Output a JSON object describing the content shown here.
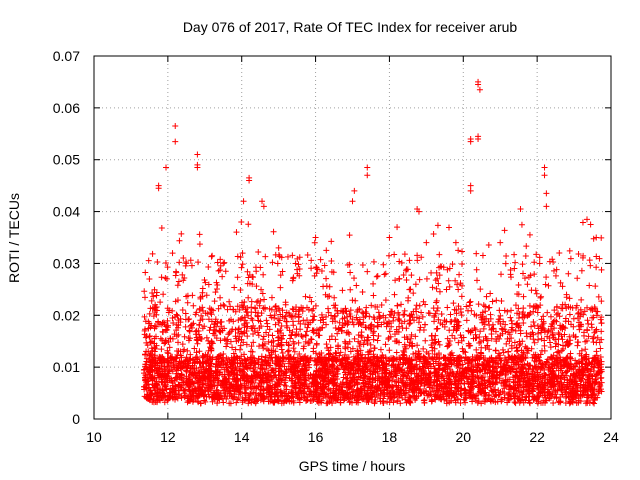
{
  "chart_data": {
    "type": "scatter",
    "title": "Day 076 of 2017, Rate Of TEC Index for receiver arub",
    "xlabel": "GPS time / hours",
    "ylabel": "ROTI / TECUs",
    "xlim": [
      10,
      24
    ],
    "ylim": [
      0,
      0.07
    ],
    "x_ticks": [
      10,
      12,
      14,
      16,
      18,
      20,
      22,
      24
    ],
    "x_tick_labels": [
      "10",
      "12",
      "14",
      "16",
      "18",
      "20",
      "22",
      "24"
    ],
    "y_ticks": [
      0,
      0.01,
      0.02,
      0.03,
      0.04,
      0.05,
      0.06,
      0.07
    ],
    "y_tick_labels": [
      "0",
      "0.01",
      "0.02",
      "0.03",
      "0.04",
      "0.05",
      "0.06",
      "0.07"
    ],
    "grid": true,
    "marker": "+",
    "marker_color": "#ff0000",
    "series": [
      {
        "name": "ROTI",
        "note": "dense cloud of thousands of points between ~11.3 and ~23.8 h; listed are notable outliers/peaks",
        "x_range": [
          11.35,
          23.75
        ],
        "typical_range": [
          0.003,
          0.02
        ],
        "points": [
          [
            12.2,
            0.0565
          ],
          [
            12.2,
            0.0535
          ],
          [
            11.95,
            0.0485
          ],
          [
            11.75,
            0.045
          ],
          [
            11.75,
            0.0445
          ],
          [
            12.8,
            0.051
          ],
          [
            12.8,
            0.049
          ],
          [
            12.8,
            0.0485
          ],
          [
            14.2,
            0.0465
          ],
          [
            14.2,
            0.046
          ],
          [
            14.55,
            0.042
          ],
          [
            14.6,
            0.041
          ],
          [
            14.05,
            0.042
          ],
          [
            17.4,
            0.0485
          ],
          [
            17.4,
            0.047
          ],
          [
            17.05,
            0.044
          ],
          [
            17.0,
            0.042
          ],
          [
            18.75,
            0.0405
          ],
          [
            18.8,
            0.04
          ],
          [
            20.2,
            0.054
          ],
          [
            20.2,
            0.0535
          ],
          [
            20.4,
            0.065
          ],
          [
            20.4,
            0.0645
          ],
          [
            20.45,
            0.0635
          ],
          [
            20.4,
            0.0545
          ],
          [
            20.4,
            0.054
          ],
          [
            20.2,
            0.045
          ],
          [
            20.2,
            0.044
          ],
          [
            22.2,
            0.0485
          ],
          [
            22.2,
            0.047
          ],
          [
            22.25,
            0.0435
          ],
          [
            22.25,
            0.041
          ],
          [
            21.55,
            0.0405
          ],
          [
            23.35,
            0.0385
          ],
          [
            23.6,
            0.035
          ],
          [
            11.5,
            0.027
          ],
          [
            12.5,
            0.03
          ],
          [
            13.5,
            0.03
          ],
          [
            15.0,
            0.033
          ],
          [
            16.0,
            0.035
          ],
          [
            18.0,
            0.035
          ],
          [
            19.0,
            0.034
          ],
          [
            19.8,
            0.034
          ],
          [
            21.0,
            0.034
          ],
          [
            22.6,
            0.032
          ]
        ]
      }
    ]
  }
}
